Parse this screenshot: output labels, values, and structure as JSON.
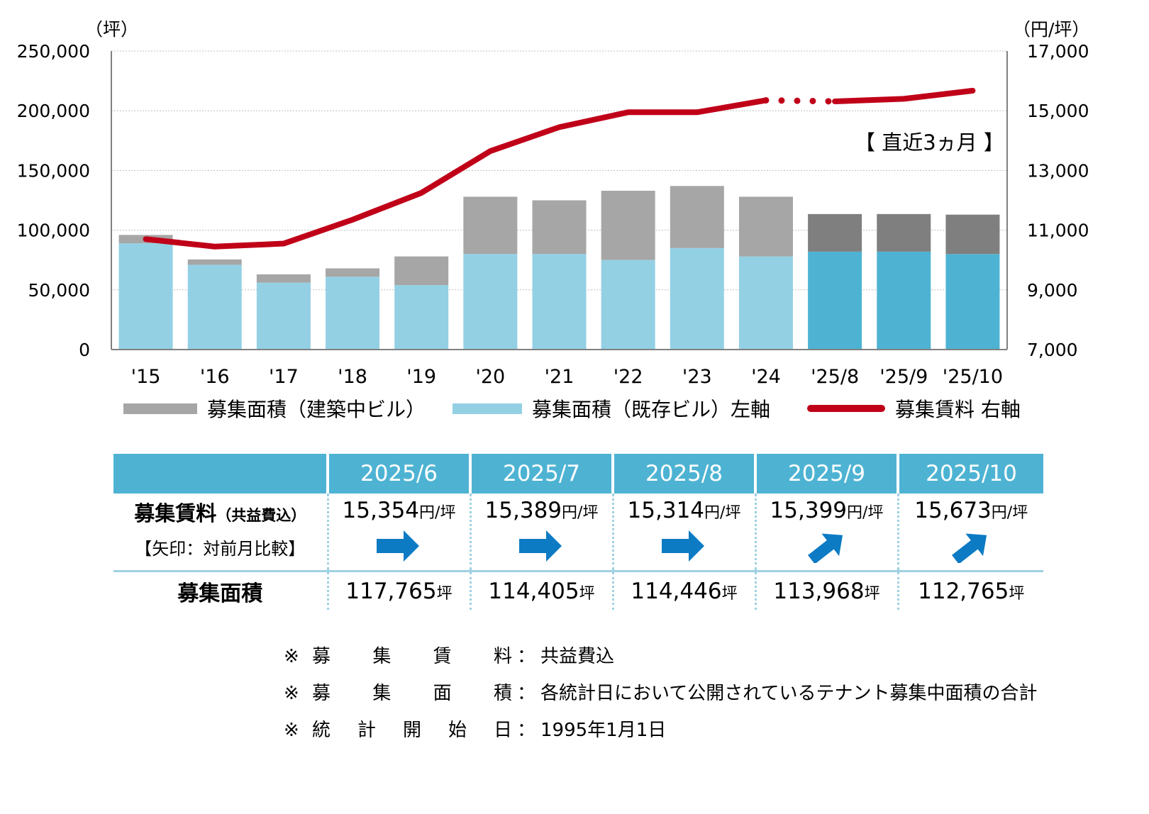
{
  "chart_data": {
    "type": "bar",
    "left_axis_unit": "（坪）",
    "right_axis_unit": "（円/坪）",
    "categories": [
      "'15",
      "'16",
      "'17",
      "'18",
      "'19",
      "'20",
      "'21",
      "'22",
      "'23",
      "'24",
      "'25/8",
      "'25/9",
      "'25/10"
    ],
    "left_ylim": [
      0,
      250000
    ],
    "right_ylim": [
      7000,
      17000
    ],
    "left_ticks": [
      "0",
      "50,000",
      "100,000",
      "150,000",
      "200,000",
      "250,000"
    ],
    "right_ticks": [
      "7,000",
      "9,000",
      "11,000",
      "13,000",
      "15,000",
      "17,000"
    ],
    "series": [
      {
        "name": "募集面積（既存ビル）左軸",
        "type": "bar",
        "stack": "area",
        "axis": "left",
        "values": [
          89000,
          71000,
          56000,
          61000,
          54000,
          80000,
          80000,
          75000,
          85000,
          78000,
          82000,
          82000,
          80000
        ]
      },
      {
        "name": "募集面積（建築中ビル）",
        "type": "bar",
        "stack": "area",
        "axis": "left",
        "values": [
          7000,
          4500,
          7000,
          7000,
          24000,
          48000,
          45000,
          58000,
          52000,
          50000,
          31500,
          31500,
          33000
        ]
      },
      {
        "name": "募集賃料 右軸",
        "type": "line",
        "axis": "right",
        "values": [
          10700,
          10450,
          10550,
          11350,
          12250,
          13650,
          14450,
          14950,
          14950,
          15350,
          15314,
          15399,
          15673
        ]
      }
    ],
    "annotation": "【 直近3ヵ月 】",
    "colors": {
      "existing": "#93d0e4",
      "under_construction": "#a6a6a6",
      "recent_existing": "#4eb3d3",
      "recent_construction": "#7f7f7f",
      "rent_line": "#c00018"
    },
    "grid": true
  },
  "legend": {
    "construction": "募集面積（建築中ビル）",
    "existing": "募集面積（既存ビル）左軸",
    "rent": "募集賃料 右軸"
  },
  "table": {
    "headers": [
      "2025/6",
      "2025/7",
      "2025/8",
      "2025/9",
      "2025/10"
    ],
    "rent_label": "募集賃料",
    "rent_sub": "（共益費込）",
    "arrow_label": "【矢印：対前月比較】",
    "rent_values": [
      "15,354",
      "15,389",
      "15,314",
      "15,399",
      "15,673"
    ],
    "rent_unit": "円/坪",
    "arrows": [
      "right",
      "right",
      "right",
      "up-right",
      "up-right"
    ],
    "area_label": "募集面積",
    "area_values": [
      "117,765",
      "114,405",
      "114,446",
      "113,968",
      "112,765"
    ],
    "area_unit": "坪",
    "arrow_color": "#0d7bc4"
  },
  "notes": [
    {
      "key": "募集賃料",
      "value": "共益費込"
    },
    {
      "key": "募集面積",
      "value": "各統計日において公開されているテナント募集中面積の合計"
    },
    {
      "key": "統計開始日",
      "value": "1995年1月1日"
    }
  ],
  "note_prefix": "※",
  "note_sep": "："
}
